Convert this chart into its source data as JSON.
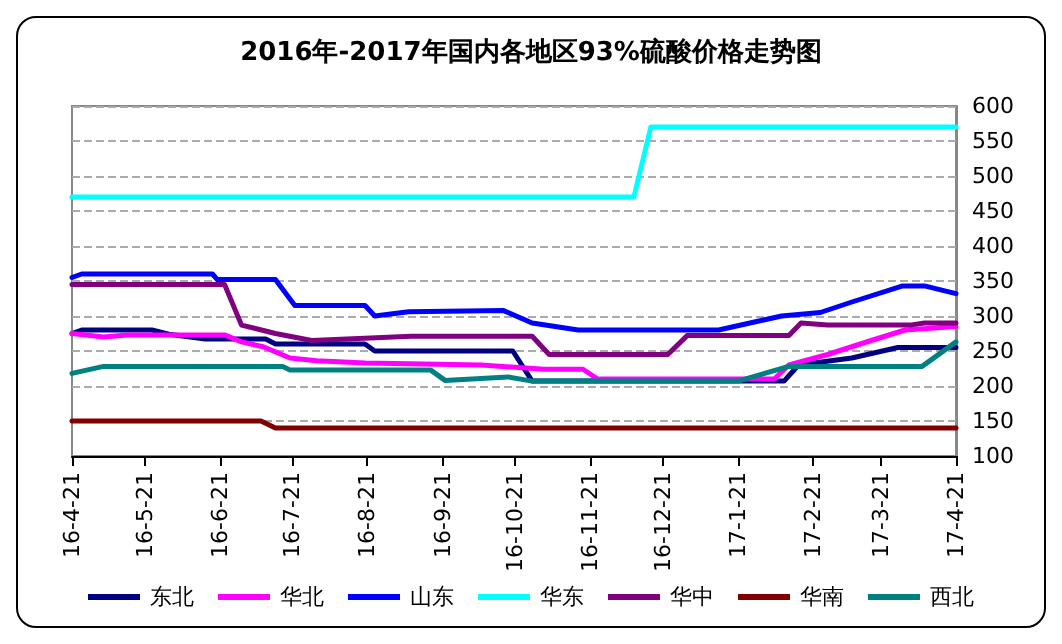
{
  "chart_data": {
    "type": "line",
    "title": "2016年-2017年国内各地区93%硫酸价格走势图",
    "xlim": [
      "2016-04-21",
      "2017-04-21"
    ],
    "xticks": [
      {
        "value": "2016-04-21",
        "label": "16-4-21"
      },
      {
        "value": "2016-05-21",
        "label": "16-5-21"
      },
      {
        "value": "2016-06-21",
        "label": "16-6-21"
      },
      {
        "value": "2016-07-21",
        "label": "16-7-21"
      },
      {
        "value": "2016-08-21",
        "label": "16-8-21"
      },
      {
        "value": "2016-09-21",
        "label": "16-9-21"
      },
      {
        "value": "2016-10-21",
        "label": "16-10-21"
      },
      {
        "value": "2016-11-21",
        "label": "16-11-21"
      },
      {
        "value": "2016-12-21",
        "label": "16-12-21"
      },
      {
        "value": "2017-01-21",
        "label": "17-1-21"
      },
      {
        "value": "2017-02-21",
        "label": "17-2-21"
      },
      {
        "value": "2017-03-21",
        "label": "17-3-21"
      },
      {
        "value": "2017-04-21",
        "label": "17-4-21"
      }
    ],
    "ylim": [
      100,
      600
    ],
    "yticks": [
      100,
      150,
      200,
      250,
      300,
      350,
      400,
      450,
      500,
      550,
      600
    ],
    "grid": "y",
    "legend": "bottom",
    "marker": "none",
    "line_style": "solid",
    "series": [
      {
        "name": "东北",
        "color": "#000080",
        "x": [
          "2016-04-21",
          "2016-04-25",
          "2016-05-24",
          "2016-05-31",
          "2016-06-15",
          "2016-07-10",
          "2016-07-14",
          "2016-08-20",
          "2016-08-24",
          "2016-10-20",
          "2016-10-28",
          "2017-02-09",
          "2017-02-15",
          "2017-03-09",
          "2017-03-28",
          "2017-04-21"
        ],
        "values": [
          275,
          280,
          280,
          274,
          267,
          267,
          260,
          260,
          250,
          250,
          207,
          207,
          230,
          240,
          255,
          255
        ]
      },
      {
        "name": "华北",
        "color": "#ff00ff",
        "x": [
          "2016-04-21",
          "2016-05-04",
          "2016-05-14",
          "2016-06-23",
          "2016-06-30",
          "2016-07-09",
          "2016-07-20",
          "2016-07-31",
          "2016-08-20",
          "2016-10-07",
          "2016-11-02",
          "2016-11-18",
          "2016-11-24",
          "2017-02-05",
          "2017-02-11",
          "2017-02-27",
          "2017-03-17",
          "2017-03-31",
          "2017-04-21"
        ],
        "values": [
          275,
          270,
          273,
          273,
          263,
          256,
          240,
          236,
          233,
          230,
          224,
          224,
          210,
          210,
          230,
          245,
          265,
          280,
          285
        ]
      },
      {
        "name": "山东",
        "color": "#0000ff",
        "x": [
          "2016-04-21",
          "2016-04-25",
          "2016-06-18",
          "2016-06-20",
          "2016-07-14",
          "2016-07-22",
          "2016-08-20",
          "2016-08-24",
          "2016-09-07",
          "2016-10-16",
          "2016-10-28",
          "2016-11-16",
          "2017-01-13",
          "2017-02-08",
          "2017-02-24",
          "2017-03-09",
          "2017-03-30",
          "2017-04-08",
          "2017-04-21"
        ],
        "values": [
          355,
          360,
          360,
          352,
          352,
          315,
          315,
          300,
          306,
          308,
          290,
          280,
          280,
          300,
          305,
          320,
          343,
          343,
          332
        ]
      },
      {
        "name": "华东",
        "color": "#00ffff",
        "x": [
          "2016-04-21",
          "2016-12-09",
          "2016-12-16",
          "2017-04-21"
        ],
        "values": [
          470,
          470,
          570,
          570
        ]
      },
      {
        "name": "华中",
        "color": "#800080",
        "x": [
          "2016-04-21",
          "2016-06-23",
          "2016-06-30",
          "2016-07-14",
          "2016-07-29",
          "2016-09-08",
          "2016-10-28",
          "2016-11-04",
          "2016-12-23",
          "2016-12-31",
          "2017-02-11",
          "2017-02-16",
          "2017-02-27",
          "2017-04-02",
          "2017-04-08",
          "2017-04-21"
        ],
        "values": [
          345,
          345,
          287,
          275,
          265,
          271,
          271,
          245,
          245,
          272,
          272,
          290,
          287,
          287,
          290,
          290
        ]
      },
      {
        "name": "华南",
        "color": "#800000",
        "x": [
          "2016-04-21",
          "2016-07-08",
          "2016-07-14",
          "2017-04-21"
        ],
        "values": [
          150,
          150,
          140,
          140
        ]
      },
      {
        "name": "西北",
        "color": "#008080",
        "x": [
          "2016-04-21",
          "2016-05-04",
          "2016-07-17",
          "2016-07-20",
          "2016-09-16",
          "2016-09-22",
          "2016-10-18",
          "2016-10-28",
          "2017-01-21",
          "2017-02-11",
          "2017-04-07",
          "2017-04-21"
        ],
        "values": [
          218,
          228,
          228,
          223,
          223,
          208,
          213,
          207,
          207,
          228,
          228,
          263
        ]
      }
    ]
  }
}
